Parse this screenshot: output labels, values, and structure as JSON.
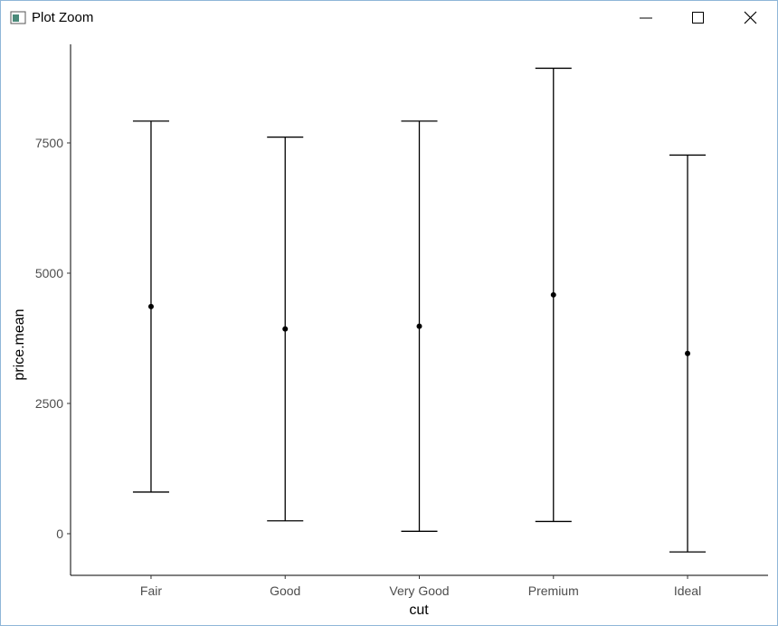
{
  "window": {
    "title": "Plot Zoom"
  },
  "chart_data": {
    "type": "errorbar",
    "x_label": "cut",
    "y_label": "price.mean",
    "categories": [
      "Fair",
      "Good",
      "Very Good",
      "Premium",
      "Ideal"
    ],
    "values": [
      4359,
      3929,
      3982,
      4584,
      3458
    ],
    "lower": [
      799,
      247,
      46,
      235,
      -350
    ],
    "upper": [
      7919,
      7611,
      7918,
      8933,
      7266
    ],
    "color": "#000000",
    "ylim": [
      -799,
      9392
    ],
    "yticks": [
      0,
      2500,
      5000,
      7500
    ]
  }
}
